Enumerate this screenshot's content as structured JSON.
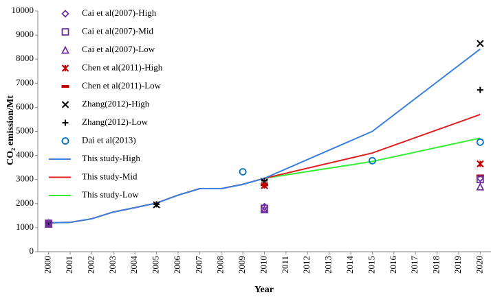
{
  "chart_data": {
    "type": "line",
    "x_label": "Year",
    "y_label": "CO₂ emission/Mt",
    "xlim": [
      1999.5,
      2020.5
    ],
    "xticks": [
      2000,
      2001,
      2002,
      2003,
      2004,
      2005,
      2006,
      2007,
      2008,
      2009,
      2010,
      2011,
      2012,
      2013,
      2014,
      2015,
      2016,
      2017,
      2018,
      2019,
      2020
    ],
    "ylim": [
      0,
      10000
    ],
    "yticks": [
      0,
      1000,
      2000,
      3000,
      4000,
      5000,
      6000,
      7000,
      8000,
      9000,
      10000
    ],
    "grid": false,
    "legend": "upper left",
    "series": [
      {
        "name": "Cai et al(2007)-High",
        "kind": "scatter",
        "marker": "diamond",
        "color": "#7030a0",
        "x": [
          2000,
          2010,
          2020
        ],
        "values": [
          1200,
          1870,
          3050
        ]
      },
      {
        "name": "Cai et al(2007)-Mid",
        "kind": "scatter",
        "marker": "square",
        "color": "#7030a0",
        "x": [
          2000,
          2010,
          2020
        ],
        "values": [
          1180,
          1800,
          3000
        ]
      },
      {
        "name": "Cai et al(2007)-Low",
        "kind": "scatter",
        "marker": "triangle",
        "color": "#7030a0",
        "x": [
          2000,
          2010,
          2020
        ],
        "values": [
          1150,
          1750,
          2700
        ]
      },
      {
        "name": "Chen et al(2011)-High",
        "kind": "scatter",
        "marker": "star",
        "color": "#c00000",
        "x": [
          2010,
          2020
        ],
        "values": [
          2750,
          3650
        ]
      },
      {
        "name": "Chen et al(2011)-Low",
        "kind": "scatter",
        "marker": "dash",
        "color": "#c00000",
        "x": [
          2010,
          2020
        ],
        "values": [
          2780,
          3150
        ]
      },
      {
        "name": "Zhang(2012)-High",
        "kind": "scatter",
        "marker": "x",
        "color": "#000000",
        "x": [
          2000,
          2005,
          2010,
          2020
        ],
        "values": [
          1150,
          1950,
          2900,
          8650
        ]
      },
      {
        "name": "Zhang(2012)-Low",
        "kind": "scatter",
        "marker": "plus",
        "color": "#000000",
        "x": [
          2000,
          2005,
          2010,
          2020
        ],
        "values": [
          1180,
          1970,
          2950,
          6720
        ]
      },
      {
        "name": "Dai et al(2013)",
        "kind": "scatter",
        "marker": "circle",
        "color": "#0070c0",
        "x": [
          2009,
          2015,
          2020
        ],
        "values": [
          3320,
          3780,
          4550
        ]
      },
      {
        "name": "This study-High",
        "kind": "line",
        "color": "#3c7fe0",
        "x": [
          2000,
          2001,
          2002,
          2003,
          2004,
          2005,
          2006,
          2007,
          2008,
          2009,
          2010,
          2015,
          2020
        ],
        "values": [
          1200,
          1220,
          1370,
          1650,
          1830,
          2020,
          2350,
          2620,
          2620,
          2800,
          3050,
          5000,
          8420
        ]
      },
      {
        "name": "This study-Mid",
        "kind": "line",
        "color": "#e02020",
        "x": [
          2000,
          2001,
          2002,
          2003,
          2004,
          2005,
          2006,
          2007,
          2008,
          2009,
          2010,
          2015,
          2020
        ],
        "values": [
          1200,
          1220,
          1370,
          1650,
          1830,
          2020,
          2350,
          2620,
          2620,
          2800,
          3050,
          4100,
          5700
        ]
      },
      {
        "name": "This study-Low",
        "kind": "line",
        "color": "#33ee33",
        "x": [
          2000,
          2001,
          2002,
          2003,
          2004,
          2005,
          2006,
          2007,
          2008,
          2009,
          2010,
          2015,
          2020
        ],
        "values": [
          1200,
          1220,
          1370,
          1650,
          1830,
          2020,
          2350,
          2620,
          2620,
          2800,
          3050,
          3750,
          4720
        ]
      }
    ]
  }
}
